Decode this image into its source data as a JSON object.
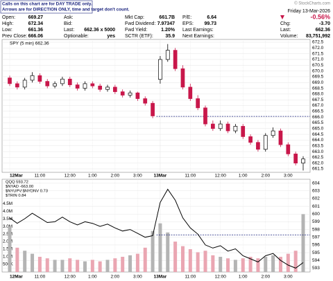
{
  "header": {
    "notice": [
      "Calls on this chart are for DAY TRADE only.",
      "Arrows are for DIRECTION ONLY, time and target don't count."
    ],
    "logo": "© StockCharts.com",
    "columns": [
      [
        {
          "label": "Open:",
          "value": 669.27
        },
        {
          "label": "High:",
          "value": 672.34
        },
        {
          "label": "Low:",
          "value": 661.36
        },
        {
          "label": "Prev Close:",
          "value": 666.06
        }
      ],
      [
        {
          "label": "Ask:"
        },
        {
          "label": "Bid:"
        },
        {
          "label": "Last:",
          "value": "662.36 x 5000"
        },
        {
          "label": "Optionable:",
          "value": "yes"
        }
      ],
      [
        {
          "label": "Mkt Cap:",
          "value": "661.7B"
        },
        {
          "label": "Fwd Dividend:",
          "value": 7.97347
        },
        {
          "label": "Fwd Yield:",
          "value": "1.20%"
        },
        {
          "label": "SCTR (ETF):",
          "value": 35.9
        }
      ],
      [
        {
          "label": "P/E:",
          "value": 6.64
        },
        {
          "label": "EPS:",
          "value": 99.73
        },
        {
          "label": "Last Earnings:"
        },
        {
          "label": "Next Earnings:"
        }
      ]
    ],
    "date": "Friday 13-Mar-2026",
    "change_pct": "-0.56%",
    "right": [
      {
        "label": "Chg:",
        "value": "-3.70"
      },
      {
        "label": "Last:",
        "value": 662.36
      },
      {
        "label": "Volume:",
        "value": "83,751,992"
      }
    ]
  },
  "chart_data": [
    {
      "type": "candlestick",
      "legend": "SPY (5 min) 662.36",
      "up_color": "#000000",
      "down_color": "#c8174a",
      "open": [
        669.4,
        668.9,
        668.6,
        669.2,
        669.6,
        669.1,
        668.7,
        668.9,
        669.3,
        668.8,
        668.5,
        668.9,
        668.7,
        668.4,
        668.6,
        668.2,
        667.9,
        668.1,
        667.6,
        667.2,
        669.27,
        671.0,
        671.8,
        670.2,
        668.6,
        667.6,
        666.8,
        665.4,
        665.0,
        665.4,
        664.8,
        665.2,
        664.3,
        663.8,
        663.2,
        664.4,
        664.8,
        663.6,
        662.8,
        662.0
      ],
      "high": [
        669.6,
        669.1,
        669.4,
        669.9,
        669.8,
        669.3,
        669.1,
        669.5,
        669.5,
        669.0,
        669.1,
        669.1,
        668.9,
        668.8,
        668.8,
        668.4,
        668.3,
        668.2,
        667.8,
        667.4,
        671.3,
        672.34,
        672.0,
        670.5,
        668.9,
        667.9,
        667.0,
        665.7,
        665.7,
        665.6,
        665.4,
        665.4,
        664.5,
        664.0,
        664.6,
        665.1,
        665.0,
        663.8,
        663.0,
        662.6
      ],
      "low": [
        668.7,
        668.4,
        668.4,
        669.0,
        668.9,
        668.5,
        668.5,
        668.7,
        668.6,
        668.3,
        668.3,
        668.5,
        668.2,
        668.2,
        668.0,
        667.7,
        667.7,
        667.4,
        667.0,
        665.9,
        668.9,
        670.8,
        670.0,
        668.4,
        667.4,
        666.6,
        665.2,
        664.8,
        664.8,
        664.6,
        664.6,
        664.1,
        663.6,
        663.0,
        663.0,
        664.2,
        663.4,
        662.6,
        661.8,
        661.36
      ],
      "close": [
        668.9,
        668.6,
        669.2,
        669.6,
        669.1,
        668.7,
        668.9,
        669.3,
        668.8,
        668.5,
        668.9,
        668.7,
        668.4,
        668.6,
        668.2,
        667.9,
        668.1,
        667.6,
        667.2,
        666.1,
        671.0,
        671.8,
        670.2,
        668.6,
        667.6,
        666.8,
        665.4,
        665.0,
        665.4,
        664.8,
        665.2,
        664.3,
        663.8,
        663.2,
        664.4,
        664.8,
        663.6,
        662.8,
        662.0,
        662.36
      ],
      "ylim": [
        661.2,
        672.74
      ],
      "yticks": [
        {
          "value": 672.5,
          "label": "672.5"
        },
        {
          "value": 672,
          "label": "672.0"
        },
        {
          "value": 671.5,
          "label": "671.5"
        },
        {
          "value": 671,
          "label": "671.0"
        },
        {
          "value": 670.5,
          "label": "670.5"
        },
        {
          "value": 670,
          "label": "670.0"
        },
        {
          "value": 669.5,
          "label": "669.5"
        },
        {
          "value": 669,
          "label": "669.0"
        },
        {
          "value": 668.5,
          "label": "668.5"
        },
        {
          "value": 668,
          "label": "668.0"
        },
        {
          "value": 667.5,
          "label": "667.5"
        },
        {
          "value": 667,
          "label": "667.0"
        },
        {
          "value": 666.5,
          "label": "666.5"
        },
        {
          "value": 666,
          "label": "666.0"
        },
        {
          "value": 665.5,
          "label": "665.5"
        },
        {
          "value": 665,
          "label": "665.0"
        },
        {
          "value": 664.5,
          "label": "664.5"
        },
        {
          "value": 664,
          "label": "664.0"
        },
        {
          "value": 663.5,
          "label": "663.5"
        },
        {
          "value": 663,
          "label": "663.0"
        },
        {
          "value": 662.5,
          "label": "662.5"
        },
        {
          "value": 662,
          "label": "662.0"
        },
        {
          "value": 661.5,
          "label": "661.5"
        }
      ],
      "xticks": [
        {
          "value": 0,
          "label": "12Mar"
        },
        {
          "value": 4,
          "label": "11:00"
        },
        {
          "value": 8,
          "label": "12:00"
        },
        {
          "value": 11,
          "label": "1:00"
        },
        {
          "value": 14,
          "label": "2:00"
        },
        {
          "value": 17,
          "label": "3:00"
        },
        {
          "value": 20,
          "label": "13Mar"
        },
        {
          "value": 24,
          "label": "11:00"
        },
        {
          "value": 28,
          "label": "12:00"
        },
        {
          "value": 31,
          "label": "1:00"
        },
        {
          "value": 34,
          "label": "2:00"
        },
        {
          "value": 37,
          "label": "3:00"
        }
      ],
      "grid": true
    },
    {
      "type": "line_volume",
      "legend": [
        "QQQ 593.72",
        "$NYAD -663.00",
        "$NYUPV:$NYDNV 0.73",
        "$TRIN 0.84"
      ],
      "color": "#000000",
      "vol_up_color": "#b4b4b4",
      "vol_down_color": "#eaa6b2",
      "ref_line": 597.3,
      "values": [
        599.5,
        598.8,
        599.4,
        600.1,
        599.5,
        598.9,
        599.0,
        599.6,
        599.0,
        598.6,
        599.0,
        598.8,
        598.4,
        598.7,
        598.2,
        597.8,
        598.0,
        597.5,
        597.0,
        597.2,
        601.5,
        603.2,
        601.8,
        599.5,
        598.2,
        597.4,
        596.0,
        595.6,
        595.9,
        595.2,
        595.5,
        594.6,
        594.2,
        593.8,
        594.6,
        594.9,
        594.0,
        593.4,
        593.0,
        593.72
      ],
      "volume": [
        3000000,
        1600000,
        1400000,
        1200000,
        1000000,
        900000,
        800000,
        800000,
        900000,
        800000,
        700000,
        800000,
        700000,
        800000,
        900000,
        1000000,
        1100000,
        1200000,
        1600000,
        2700000,
        3200000,
        2600000,
        2000000,
        1700000,
        1500000,
        1300000,
        1400000,
        1100000,
        1000000,
        900000,
        800000,
        900000,
        1000000,
        900000,
        1000000,
        1100000,
        1000000,
        1200000,
        1400000,
        3800000
      ],
      "ylim": [
        592.5,
        604.5
      ],
      "yticks": [
        604,
        603,
        602,
        601,
        600,
        599,
        598,
        597,
        596,
        595,
        594,
        593
      ],
      "vlim": [
        0,
        6100000
      ],
      "vticks": [
        {
          "value": 4500000,
          "label": "4.5M"
        },
        {
          "value": 4000000,
          "label": "4.0M"
        },
        {
          "value": 3500000,
          "label": "3.5M"
        },
        {
          "value": 3000000,
          "label": "3.0M"
        },
        {
          "value": 2500000,
          "label": "2.5M"
        },
        {
          "value": 2000000,
          "label": "2.0M"
        },
        {
          "value": 1500000,
          "label": "1.5M"
        },
        {
          "value": 1000000,
          "label": "1.0M"
        },
        {
          "value": 500000,
          "label": "500K"
        }
      ],
      "xticks": [
        {
          "value": 0,
          "label": "12Mar"
        },
        {
          "value": 4,
          "label": "11:00"
        },
        {
          "value": 8,
          "label": "12:00"
        },
        {
          "value": 11,
          "label": "1:00"
        },
        {
          "value": 14,
          "label": "2:00"
        },
        {
          "value": 17,
          "label": "3:00"
        },
        {
          "value": 20,
          "label": "13Mar"
        },
        {
          "value": 24,
          "label": "11:00"
        },
        {
          "value": 28,
          "label": "12:00"
        },
        {
          "value": 31,
          "label": "1:00"
        },
        {
          "value": 34,
          "label": "2:00"
        },
        {
          "value": 37,
          "label": "3:00"
        }
      ],
      "grid": true
    }
  ]
}
